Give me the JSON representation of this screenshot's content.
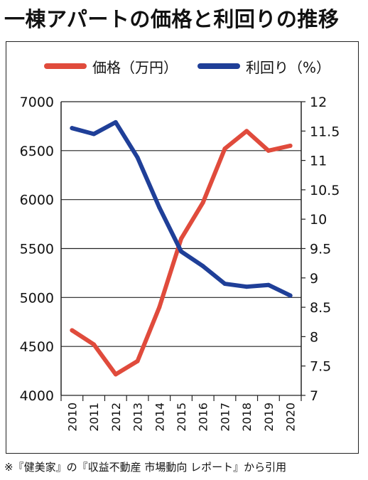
{
  "title": "一棟アパートの価格と利回りの推移",
  "note": "※『健美家』の『収益不動産 市場動向 レポート』から引用",
  "colors": {
    "price": "#e04b3c",
    "yield": "#1f3f98"
  },
  "chart_data": {
    "type": "line",
    "x": [
      "2010",
      "2011",
      "2012",
      "2013",
      "2014",
      "2015",
      "2016",
      "2017",
      "2018",
      "2019",
      "2020"
    ],
    "series": [
      {
        "name": "価格（万円）",
        "axis": "left",
        "values": [
          4665,
          4520,
          4215,
          4350,
          4900,
          5600,
          5970,
          6520,
          6700,
          6500,
          6550
        ]
      },
      {
        "name": "利回り（%）",
        "axis": "right",
        "values": [
          11.55,
          11.45,
          11.65,
          11.05,
          10.2,
          9.45,
          9.2,
          8.9,
          8.85,
          8.88,
          8.7
        ]
      }
    ],
    "ylim_left": [
      4000,
      7000
    ],
    "yticks_left": [
      "4000",
      "4500",
      "5000",
      "5500",
      "6000",
      "6500",
      "7000"
    ],
    "ylim_right": [
      7,
      12
    ],
    "yticks_right": [
      "7",
      "7.5",
      "8",
      "8.5",
      "9",
      "9.5",
      "10",
      "10.5",
      "11",
      "11.5",
      "12"
    ],
    "legend_position": "top",
    "grid": "horizontal"
  }
}
